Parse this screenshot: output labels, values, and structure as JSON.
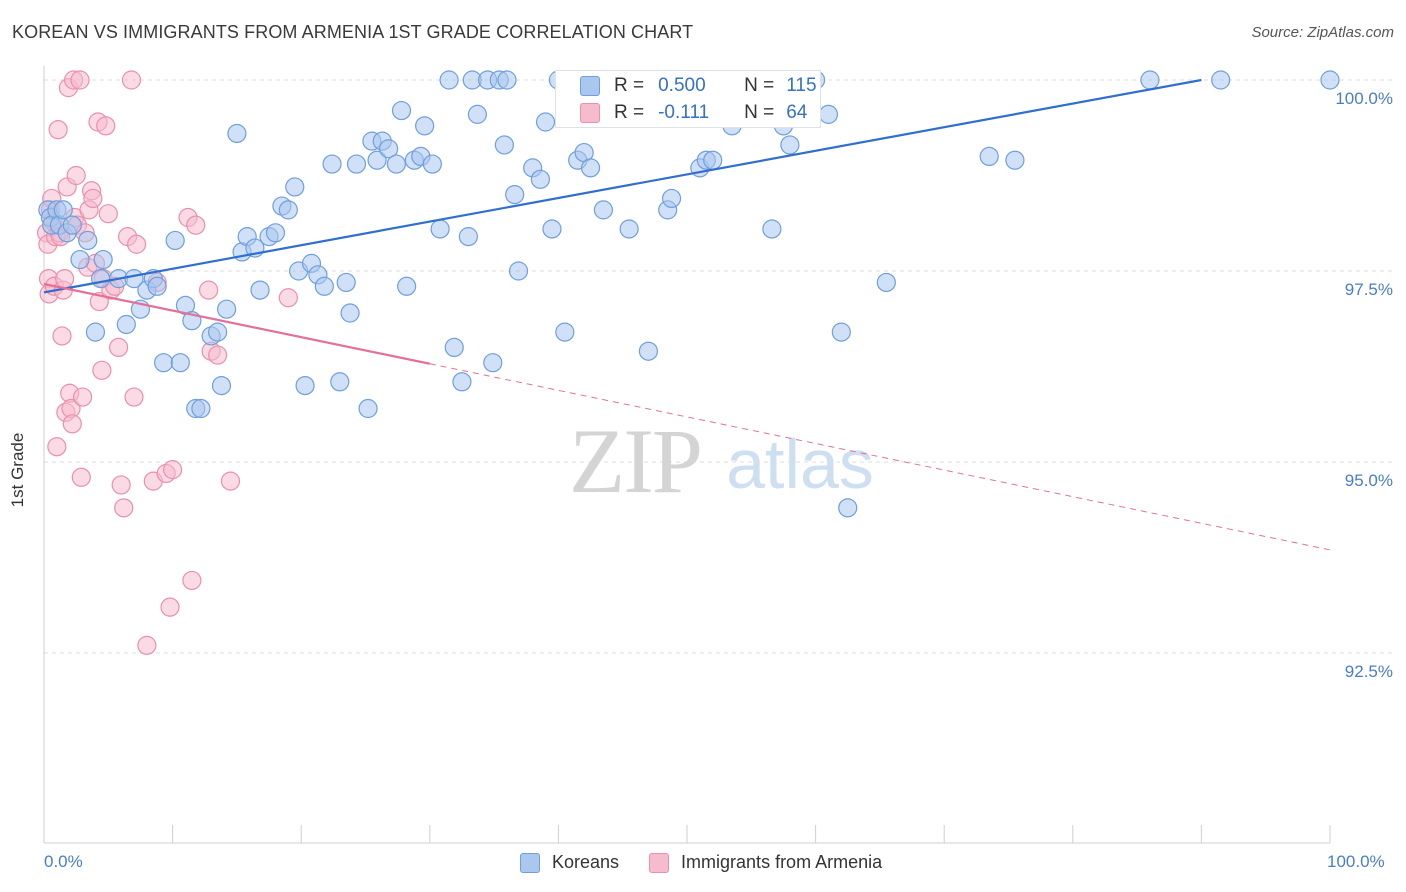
{
  "title": "KOREAN VS IMMIGRANTS FROM ARMENIA 1ST GRADE CORRELATION CHART",
  "source": "Source: ZipAtlas.com",
  "watermark": {
    "zip": "ZIP",
    "atlas": "atlas"
  },
  "colors": {
    "blue_fill": "#a9c7ef",
    "blue_stroke": "#6f9fdc",
    "blue_line": "#2f6fd0",
    "pink_fill": "#f6bccd",
    "pink_stroke": "#ec8fab",
    "pink_line": "#e4709a",
    "tick_text": "#4a7dc9",
    "grid": "#dcdcdc"
  },
  "legend_box": {
    "rows": [
      {
        "r_label": "R =",
        "r_value": "0.500",
        "n_label": "N =",
        "n_value": "115"
      },
      {
        "r_label": "R =",
        "r_value": "-0.111",
        "n_label": "N =",
        "n_value": "64"
      }
    ]
  },
  "chart_data": {
    "type": "scatter",
    "title": "KOREAN VS IMMIGRANTS FROM ARMENIA 1ST GRADE CORRELATION CHART",
    "xlabel": "",
    "ylabel": "1st Grade",
    "xlim": [
      0,
      100
    ],
    "ylim": [
      90.2,
      100.45
    ],
    "x_tick_labels": [
      "0.0%",
      "100.0%"
    ],
    "y_ticks": [
      92.5,
      95.0,
      97.5,
      100.0
    ],
    "y_tick_labels": [
      "92.5%",
      "95.0%",
      "97.5%",
      "100.0%"
    ],
    "grid": "horizontal dashed",
    "legend": "bottom-center",
    "series": [
      {
        "name": "Koreans",
        "stats": {
          "R": 0.5,
          "N": 115
        },
        "trend": {
          "x": [
            0,
            90
          ],
          "y": [
            97.22,
            100.0
          ],
          "dashed_until": null
        },
        "points": [
          [
            0.3,
            98.3
          ],
          [
            0.5,
            98.2
          ],
          [
            0.6,
            98.1
          ],
          [
            1.0,
            98.3
          ],
          [
            1.2,
            98.1
          ],
          [
            1.5,
            98.3
          ],
          [
            1.8,
            98.0
          ],
          [
            2.2,
            98.1
          ],
          [
            2.8,
            97.65
          ],
          [
            3.4,
            97.9
          ],
          [
            4.0,
            96.7
          ],
          [
            4.4,
            97.4
          ],
          [
            4.6,
            97.65
          ],
          [
            5.8,
            97.4
          ],
          [
            6.4,
            96.8
          ],
          [
            7.0,
            97.4
          ],
          [
            7.5,
            97.0
          ],
          [
            8.0,
            97.25
          ],
          [
            8.5,
            97.4
          ],
          [
            8.8,
            97.3
          ],
          [
            9.3,
            96.3
          ],
          [
            10.2,
            97.9
          ],
          [
            10.6,
            96.3
          ],
          [
            11.0,
            97.05
          ],
          [
            11.5,
            96.85
          ],
          [
            11.8,
            95.7
          ],
          [
            12.2,
            95.7
          ],
          [
            13.0,
            96.65
          ],
          [
            13.5,
            96.7
          ],
          [
            13.8,
            96.0
          ],
          [
            14.2,
            97.0
          ],
          [
            15.0,
            99.3
          ],
          [
            15.4,
            97.75
          ],
          [
            15.8,
            97.95
          ],
          [
            16.4,
            97.8
          ],
          [
            16.8,
            97.25
          ],
          [
            17.5,
            97.95
          ],
          [
            18.0,
            98.0
          ],
          [
            18.5,
            98.35
          ],
          [
            19.0,
            98.3
          ],
          [
            19.5,
            98.6
          ],
          [
            19.8,
            97.5
          ],
          [
            20.3,
            96.0
          ],
          [
            20.8,
            97.6
          ],
          [
            21.3,
            97.45
          ],
          [
            21.8,
            97.3
          ],
          [
            22.4,
            98.9
          ],
          [
            23.0,
            96.05
          ],
          [
            23.5,
            97.35
          ],
          [
            23.8,
            96.95
          ],
          [
            24.3,
            98.9
          ],
          [
            25.2,
            95.7
          ],
          [
            25.5,
            99.2
          ],
          [
            25.9,
            98.95
          ],
          [
            26.3,
            99.2
          ],
          [
            26.8,
            99.1
          ],
          [
            27.4,
            98.9
          ],
          [
            27.8,
            99.6
          ],
          [
            28.2,
            97.3
          ],
          [
            28.8,
            98.95
          ],
          [
            29.3,
            99.0
          ],
          [
            29.6,
            99.4
          ],
          [
            30.2,
            98.9
          ],
          [
            30.8,
            98.05
          ],
          [
            31.5,
            100.0
          ],
          [
            31.9,
            96.5
          ],
          [
            32.5,
            96.05
          ],
          [
            33.0,
            97.95
          ],
          [
            33.3,
            100.0
          ],
          [
            33.7,
            99.55
          ],
          [
            34.5,
            100.0
          ],
          [
            34.9,
            96.3
          ],
          [
            35.4,
            100.0
          ],
          [
            35.8,
            99.15
          ],
          [
            36.0,
            100.0
          ],
          [
            36.6,
            98.5
          ],
          [
            36.9,
            97.5
          ],
          [
            38.0,
            98.85
          ],
          [
            38.6,
            98.7
          ],
          [
            39.0,
            99.45
          ],
          [
            39.5,
            98.05
          ],
          [
            40.0,
            100.0
          ],
          [
            40.5,
            96.7
          ],
          [
            41.0,
            100.0
          ],
          [
            41.5,
            98.95
          ],
          [
            42.0,
            99.05
          ],
          [
            42.5,
            98.85
          ],
          [
            43.5,
            98.3
          ],
          [
            45.5,
            98.05
          ],
          [
            46.5,
            100.0
          ],
          [
            47.0,
            96.45
          ],
          [
            48.0,
            100.0
          ],
          [
            48.5,
            98.3
          ],
          [
            48.8,
            98.45
          ],
          [
            50.5,
            100.0
          ],
          [
            51.0,
            98.85
          ],
          [
            51.5,
            98.95
          ],
          [
            52.0,
            98.95
          ],
          [
            53.5,
            99.4
          ],
          [
            54.0,
            100.0
          ],
          [
            54.5,
            100.0
          ],
          [
            56.0,
            100.0
          ],
          [
            56.6,
            98.05
          ],
          [
            57.5,
            99.4
          ],
          [
            58.0,
            99.15
          ],
          [
            59.0,
            99.6
          ],
          [
            60.0,
            100.0
          ],
          [
            61.0,
            99.55
          ],
          [
            62.0,
            96.7
          ],
          [
            62.5,
            94.4
          ],
          [
            65.5,
            97.35
          ],
          [
            73.5,
            99.0
          ],
          [
            75.5,
            98.95
          ],
          [
            86.0,
            100.0
          ],
          [
            91.5,
            100.0
          ],
          [
            100.0,
            100.0
          ]
        ]
      },
      {
        "name": "Immigrants from Armenia",
        "stats": {
          "R": -0.111,
          "N": 64
        },
        "trend": {
          "x": [
            0,
            100
          ],
          "y": [
            97.33,
            93.85
          ],
          "dashed_after": 30
        },
        "points": [
          [
            0.2,
            98.0
          ],
          [
            0.3,
            97.85
          ],
          [
            0.35,
            97.4
          ],
          [
            0.4,
            97.2
          ],
          [
            0.5,
            98.3
          ],
          [
            0.6,
            98.45
          ],
          [
            0.7,
            98.15
          ],
          [
            0.8,
            97.3
          ],
          [
            0.9,
            97.95
          ],
          [
            1.0,
            95.2
          ],
          [
            1.1,
            99.35
          ],
          [
            1.2,
            98.0
          ],
          [
            1.3,
            97.95
          ],
          [
            1.4,
            96.65
          ],
          [
            1.5,
            97.25
          ],
          [
            1.6,
            97.4
          ],
          [
            1.7,
            95.65
          ],
          [
            1.8,
            98.6
          ],
          [
            1.9,
            99.9
          ],
          [
            2.0,
            95.9
          ],
          [
            2.1,
            95.7
          ],
          [
            2.2,
            95.5
          ],
          [
            2.3,
            100.0
          ],
          [
            2.4,
            98.2
          ],
          [
            2.5,
            98.75
          ],
          [
            2.6,
            98.1
          ],
          [
            2.8,
            100.0
          ],
          [
            2.9,
            94.8
          ],
          [
            3.0,
            95.85
          ],
          [
            3.2,
            98.0
          ],
          [
            3.4,
            97.55
          ],
          [
            3.5,
            98.3
          ],
          [
            3.7,
            98.55
          ],
          [
            3.8,
            98.45
          ],
          [
            4.0,
            97.6
          ],
          [
            4.2,
            99.45
          ],
          [
            4.3,
            97.1
          ],
          [
            4.5,
            96.2
          ],
          [
            4.6,
            97.4
          ],
          [
            4.8,
            99.4
          ],
          [
            5.0,
            98.25
          ],
          [
            5.2,
            97.25
          ],
          [
            5.5,
            97.3
          ],
          [
            5.8,
            96.5
          ],
          [
            6.0,
            94.7
          ],
          [
            6.2,
            94.4
          ],
          [
            6.5,
            97.95
          ],
          [
            6.8,
            100.0
          ],
          [
            7.0,
            95.85
          ],
          [
            7.2,
            97.85
          ],
          [
            8.0,
            92.6
          ],
          [
            8.5,
            94.75
          ],
          [
            8.8,
            97.35
          ],
          [
            9.5,
            94.85
          ],
          [
            9.8,
            93.1
          ],
          [
            10.0,
            94.9
          ],
          [
            11.2,
            98.2
          ],
          [
            11.5,
            93.45
          ],
          [
            11.8,
            98.1
          ],
          [
            12.8,
            97.25
          ],
          [
            13.0,
            96.45
          ],
          [
            13.5,
            96.4
          ],
          [
            14.5,
            94.75
          ],
          [
            19.0,
            97.15
          ]
        ]
      }
    ]
  }
}
